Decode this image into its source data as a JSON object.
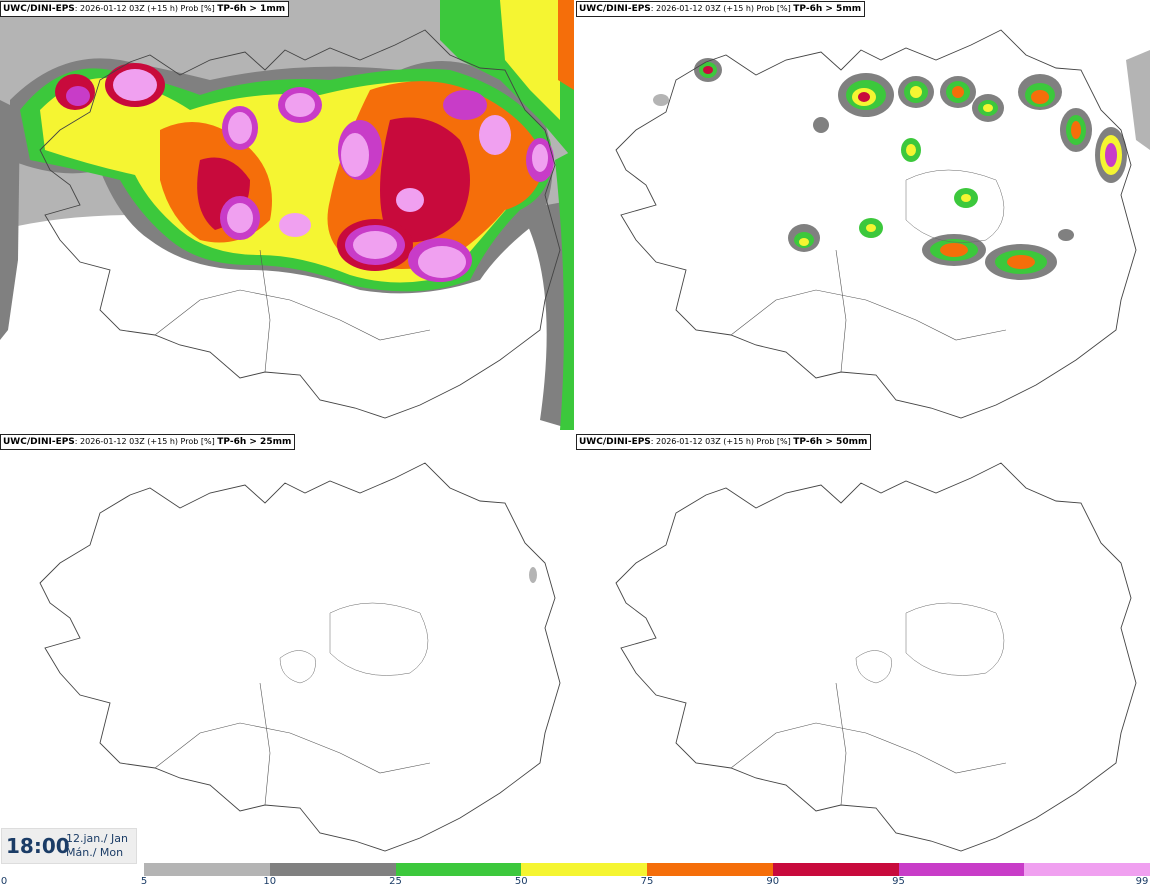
{
  "panels": [
    {
      "model": "UWC/DINI-EPS",
      "run": ": 2026-01-12 03Z (+15 h) Prob [%] ",
      "threshold": "TP-6h > 1mm",
      "level": "heavy"
    },
    {
      "model": "UWC/DINI-EPS",
      "run": ": 2026-01-12 03Z (+15 h) Prob [%] ",
      "threshold": "TP-6h > 5mm",
      "level": "light"
    },
    {
      "model": "UWC/DINI-EPS",
      "run": ": 2026-01-12 03Z (+15 h) Prob [%] ",
      "threshold": "TP-6h > 25mm",
      "level": "trace"
    },
    {
      "model": "UWC/DINI-EPS",
      "run": ": 2026-01-12 03Z (+15 h) Prob [%] ",
      "threshold": "TP-6h > 50mm",
      "level": "none"
    }
  ],
  "time": {
    "clock": "18:00",
    "date_line1": "12.jan./ Jan",
    "date_line2": "Mán./ Mon"
  },
  "colorbar": {
    "labels": [
      "0",
      "5",
      "10",
      "25",
      "50",
      "75",
      "90",
      "95",
      "99"
    ],
    "colors": [
      "#b4b4b4",
      "#808080",
      "#3cc83c",
      "#f5f532",
      "#f56e0a",
      "#c80a3c",
      "#c83cc8",
      "#f0a0f0"
    ]
  }
}
